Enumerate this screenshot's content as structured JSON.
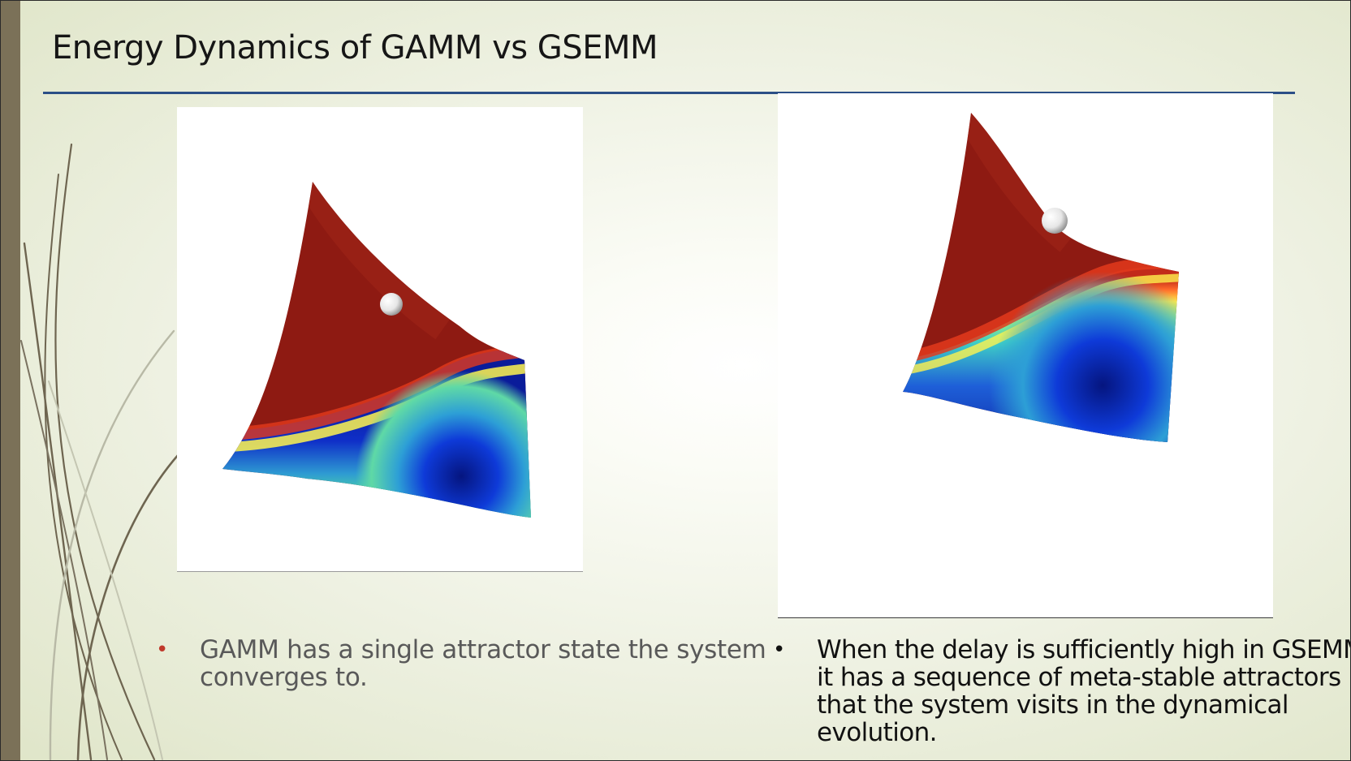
{
  "slide": {
    "title": "Energy Dynamics of GAMM vs GSEMM",
    "colors": {
      "title_rule": "#2b4f86",
      "side_bar": "#7b7158",
      "left_bullet_marker": "#c0392b"
    }
  },
  "figures": {
    "left": {
      "subject": "GAMM energy landscape",
      "icon": "energy-surface-single-attractor"
    },
    "right": {
      "subject": "GSEMM energy landscape",
      "icon": "energy-surface-meta-stable"
    }
  },
  "bullets": {
    "left": {
      "marker": "•",
      "text": "GAMM has a single attractor state the system converges to."
    },
    "right": {
      "marker": "•",
      "text": "When the delay is sufficiently high in GSEMM, it has a sequence of meta-stable attractors that the system visits in the dynamical evolution."
    }
  }
}
